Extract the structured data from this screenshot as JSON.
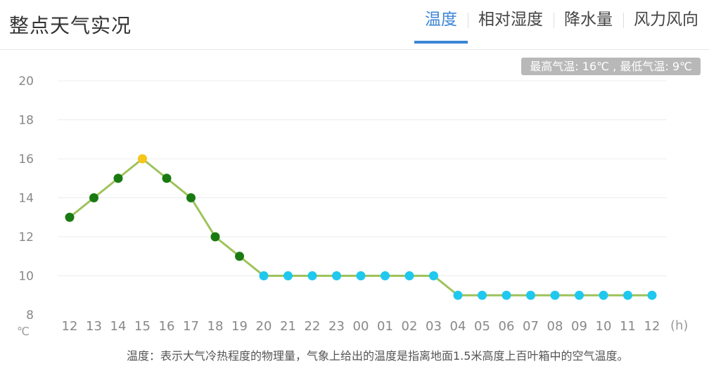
{
  "header": {
    "title": "整点天气实况",
    "tabs": [
      {
        "label": "温度",
        "active": true
      },
      {
        "label": "相对湿度",
        "active": false
      },
      {
        "label": "降水量",
        "active": false
      },
      {
        "label": "风力风向",
        "active": false
      }
    ]
  },
  "summary_badge": "最高气温: 16℃ , 最低气温: 9℃",
  "footnote": "温度：表示大气冷热程度的物理量，气象上给出的温度是指离地面1.5米高度上百叶箱中的空气温度。",
  "colors": {
    "accent": "#3b86d6",
    "line": "#9dc35a",
    "point_mid": "#1a7a12",
    "point_max": "#f5c518",
    "point_low": "#1fc8ee",
    "grid": "#ececec",
    "axis_text": "#888888"
  },
  "chart_data": {
    "type": "line",
    "x": [
      "12",
      "13",
      "14",
      "15",
      "16",
      "17",
      "18",
      "19",
      "20",
      "21",
      "22",
      "23",
      "00",
      "01",
      "02",
      "03",
      "04",
      "05",
      "06",
      "07",
      "08",
      "09",
      "10",
      "11",
      "12"
    ],
    "series": [
      {
        "values": [
          13,
          14,
          15,
          16,
          15,
          14,
          12,
          11,
          10,
          10,
          10,
          10,
          10,
          10,
          10,
          10,
          9,
          9,
          9,
          9,
          9,
          9,
          9,
          9,
          9
        ]
      }
    ],
    "y_ticks": [
      8,
      10,
      12,
      14,
      16,
      18,
      20
    ],
    "ylim": [
      8,
      20
    ],
    "y_unit": "℃",
    "x_unit": "(h)",
    "grid": true
  }
}
